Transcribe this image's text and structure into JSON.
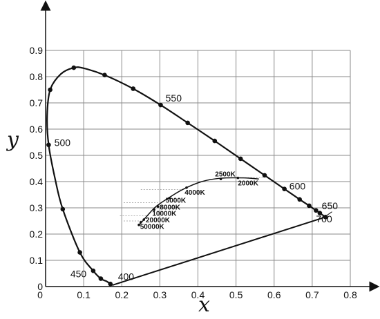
{
  "chart_data": {
    "type": "line",
    "title": "",
    "xlabel": "x",
    "ylabel": "y",
    "xlim": [
      0,
      0.8
    ],
    "ylim": [
      0,
      0.9
    ],
    "x_ticks": [
      "0",
      "0.1",
      "0.2",
      "0.3",
      "0.4",
      "0.5",
      "0.6",
      "0.7",
      "0.8"
    ],
    "y_ticks": [
      "0",
      "0.1",
      "0.2",
      "0.3",
      "0.4",
      "0.5",
      "0.6",
      "0.7",
      "0.8",
      "0.9"
    ],
    "grid": true,
    "spectral_locus": {
      "points": [
        [
          0.175,
          0.005
        ],
        [
          0.17,
          0.01
        ],
        [
          0.16,
          0.02
        ],
        [
          0.145,
          0.03
        ],
        [
          0.125,
          0.06
        ],
        [
          0.09,
          0.13
        ],
        [
          0.045,
          0.295
        ],
        [
          0.025,
          0.41
        ],
        [
          0.008,
          0.54
        ],
        [
          0.004,
          0.65
        ],
        [
          0.012,
          0.75
        ],
        [
          0.04,
          0.81
        ],
        [
          0.074,
          0.834
        ],
        [
          0.1,
          0.832
        ],
        [
          0.155,
          0.806
        ],
        [
          0.23,
          0.754
        ],
        [
          0.302,
          0.692
        ],
        [
          0.373,
          0.624
        ],
        [
          0.444,
          0.555
        ],
        [
          0.512,
          0.487
        ],
        [
          0.575,
          0.424
        ],
        [
          0.627,
          0.372
        ],
        [
          0.667,
          0.332
        ],
        [
          0.692,
          0.308
        ],
        [
          0.71,
          0.29
        ],
        [
          0.72,
          0.28
        ],
        [
          0.735,
          0.265
        ]
      ],
      "markers": [
        [
          0.17,
          0.01
        ],
        [
          0.145,
          0.03
        ],
        [
          0.125,
          0.06
        ],
        [
          0.09,
          0.13
        ],
        [
          0.045,
          0.295
        ],
        [
          0.008,
          0.54
        ],
        [
          0.012,
          0.75
        ],
        [
          0.074,
          0.834
        ],
        [
          0.155,
          0.806
        ],
        [
          0.23,
          0.754
        ],
        [
          0.302,
          0.692
        ],
        [
          0.373,
          0.624
        ],
        [
          0.444,
          0.555
        ],
        [
          0.512,
          0.487
        ],
        [
          0.575,
          0.424
        ],
        [
          0.627,
          0.372
        ],
        [
          0.667,
          0.332
        ],
        [
          0.692,
          0.308
        ],
        [
          0.71,
          0.29
        ],
        [
          0.72,
          0.28
        ],
        [
          0.735,
          0.265
        ]
      ]
    },
    "line_of_purples": [
      [
        0.175,
        0.005
      ],
      [
        0.735,
        0.265
      ]
    ],
    "wavelength_labels": [
      {
        "text": "400",
        "x": 0.19,
        "y": 0.025
      },
      {
        "text": "450",
        "x": 0.065,
        "y": 0.035
      },
      {
        "text": "500",
        "x": 0.023,
        "y": 0.535
      },
      {
        "text": "550",
        "x": 0.315,
        "y": 0.705
      },
      {
        "text": "600",
        "x": 0.64,
        "y": 0.37
      },
      {
        "text": "650",
        "x": 0.725,
        "y": 0.295
      },
      {
        "text": "700",
        "x": 0.71,
        "y": 0.245
      }
    ],
    "planckian_locus": {
      "points": [
        [
          0.245,
          0.235
        ],
        [
          0.255,
          0.25
        ],
        [
          0.27,
          0.275
        ],
        [
          0.29,
          0.305
        ],
        [
          0.32,
          0.335
        ],
        [
          0.36,
          0.37
        ],
        [
          0.41,
          0.4
        ],
        [
          0.46,
          0.413
        ],
        [
          0.52,
          0.414
        ],
        [
          0.56,
          0.41
        ]
      ],
      "markers": [
        [
          0.245,
          0.235
        ],
        [
          0.25,
          0.245
        ],
        [
          0.258,
          0.255
        ],
        [
          0.285,
          0.293
        ],
        [
          0.295,
          0.305
        ],
        [
          0.325,
          0.337
        ],
        [
          0.37,
          0.377
        ],
        [
          0.46,
          0.41
        ],
        [
          0.505,
          0.414
        ]
      ],
      "guide_lines": [
        [
          [
            0.205,
            0.25
          ],
          [
            0.255,
            0.25
          ]
        ],
        [
          [
            0.195,
            0.27
          ],
          [
            0.27,
            0.27
          ]
        ],
        [
          [
            0.205,
            0.32
          ],
          [
            0.295,
            0.32
          ]
        ],
        [
          [
            0.25,
            0.37
          ],
          [
            0.36,
            0.37
          ]
        ],
        [
          [
            0.48,
            0.415
          ],
          [
            0.57,
            0.415
          ]
        ]
      ]
    },
    "temperature_labels": [
      {
        "text": "2500K",
        "x": 0.445,
        "y": 0.42
      },
      {
        "text": "2000K",
        "x": 0.505,
        "y": 0.385
      },
      {
        "text": "4000K",
        "x": 0.365,
        "y": 0.35
      },
      {
        "text": "5000K",
        "x": 0.315,
        "y": 0.32
      },
      {
        "text": "8000K",
        "x": 0.3,
        "y": 0.293
      },
      {
        "text": "10000K",
        "x": 0.28,
        "y": 0.27
      },
      {
        "text": "20000K",
        "x": 0.263,
        "y": 0.245
      },
      {
        "text": "50000K",
        "x": 0.248,
        "y": 0.22
      }
    ]
  }
}
